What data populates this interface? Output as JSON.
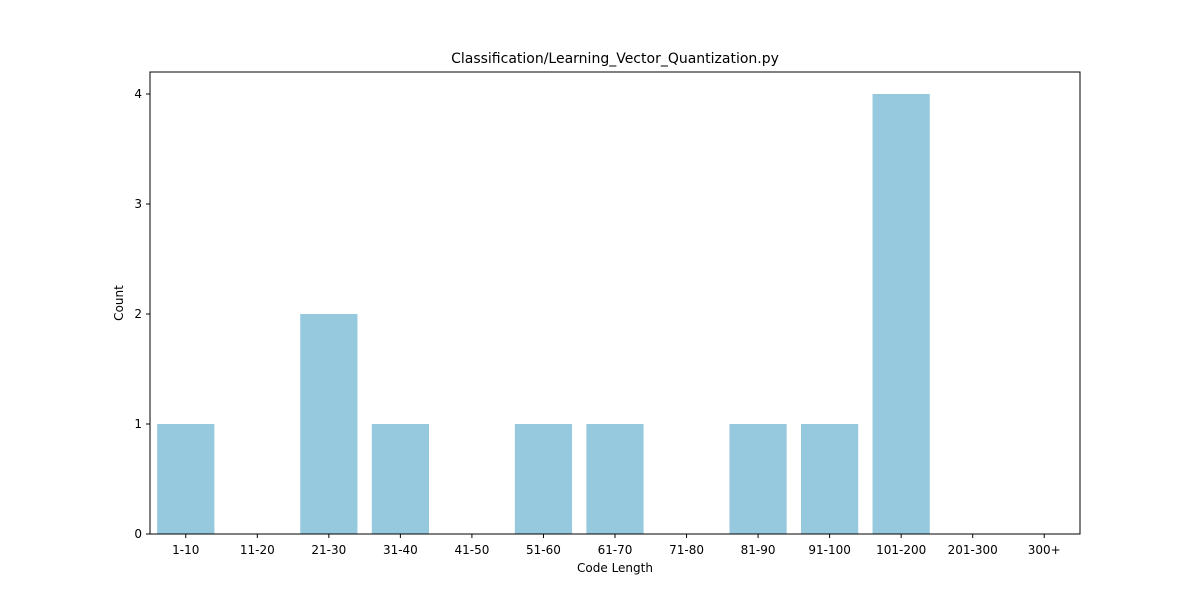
{
  "chart_data": {
    "type": "bar",
    "title": "Classification/Learning_Vector_Quantization.py",
    "xlabel": "Code Length",
    "ylabel": "Count",
    "categories": [
      "1-10",
      "11-20",
      "21-30",
      "31-40",
      "41-50",
      "51-60",
      "61-70",
      "71-80",
      "81-90",
      "91-100",
      "101-200",
      "201-300",
      "300+"
    ],
    "values": [
      1,
      0,
      2,
      1,
      0,
      1,
      1,
      0,
      1,
      1,
      4,
      0,
      0
    ],
    "yticks": [
      "0",
      "1",
      "2",
      "3",
      "4"
    ],
    "ylim": [
      0,
      4.2
    ],
    "grid": false,
    "legend": "none",
    "bar_color": "#96c9de"
  }
}
